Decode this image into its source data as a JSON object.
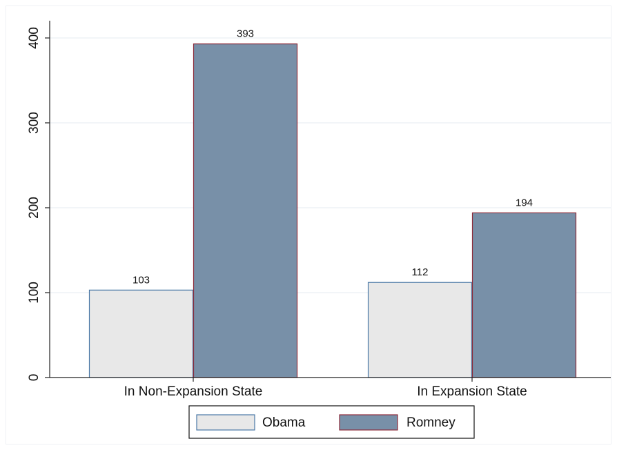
{
  "chart_data": {
    "type": "bar",
    "categories": [
      "In Non-Expansion State",
      "In Expansion State"
    ],
    "series": [
      {
        "name": "Obama",
        "values": [
          103,
          112
        ],
        "fill": "#e8e8e8",
        "stroke": "#4a78a6"
      },
      {
        "name": "Romney",
        "values": [
          393,
          194
        ],
        "fill": "#7890a8",
        "stroke": "#8b2a3a"
      }
    ],
    "y_ticks": [
      0,
      100,
      200,
      300,
      400
    ],
    "ylim": [
      0,
      400
    ],
    "grid": true,
    "legend_position": "bottom-center",
    "colors": {
      "grid": "#e6ebf0",
      "axis": "#222222",
      "background": "#ffffff"
    }
  }
}
